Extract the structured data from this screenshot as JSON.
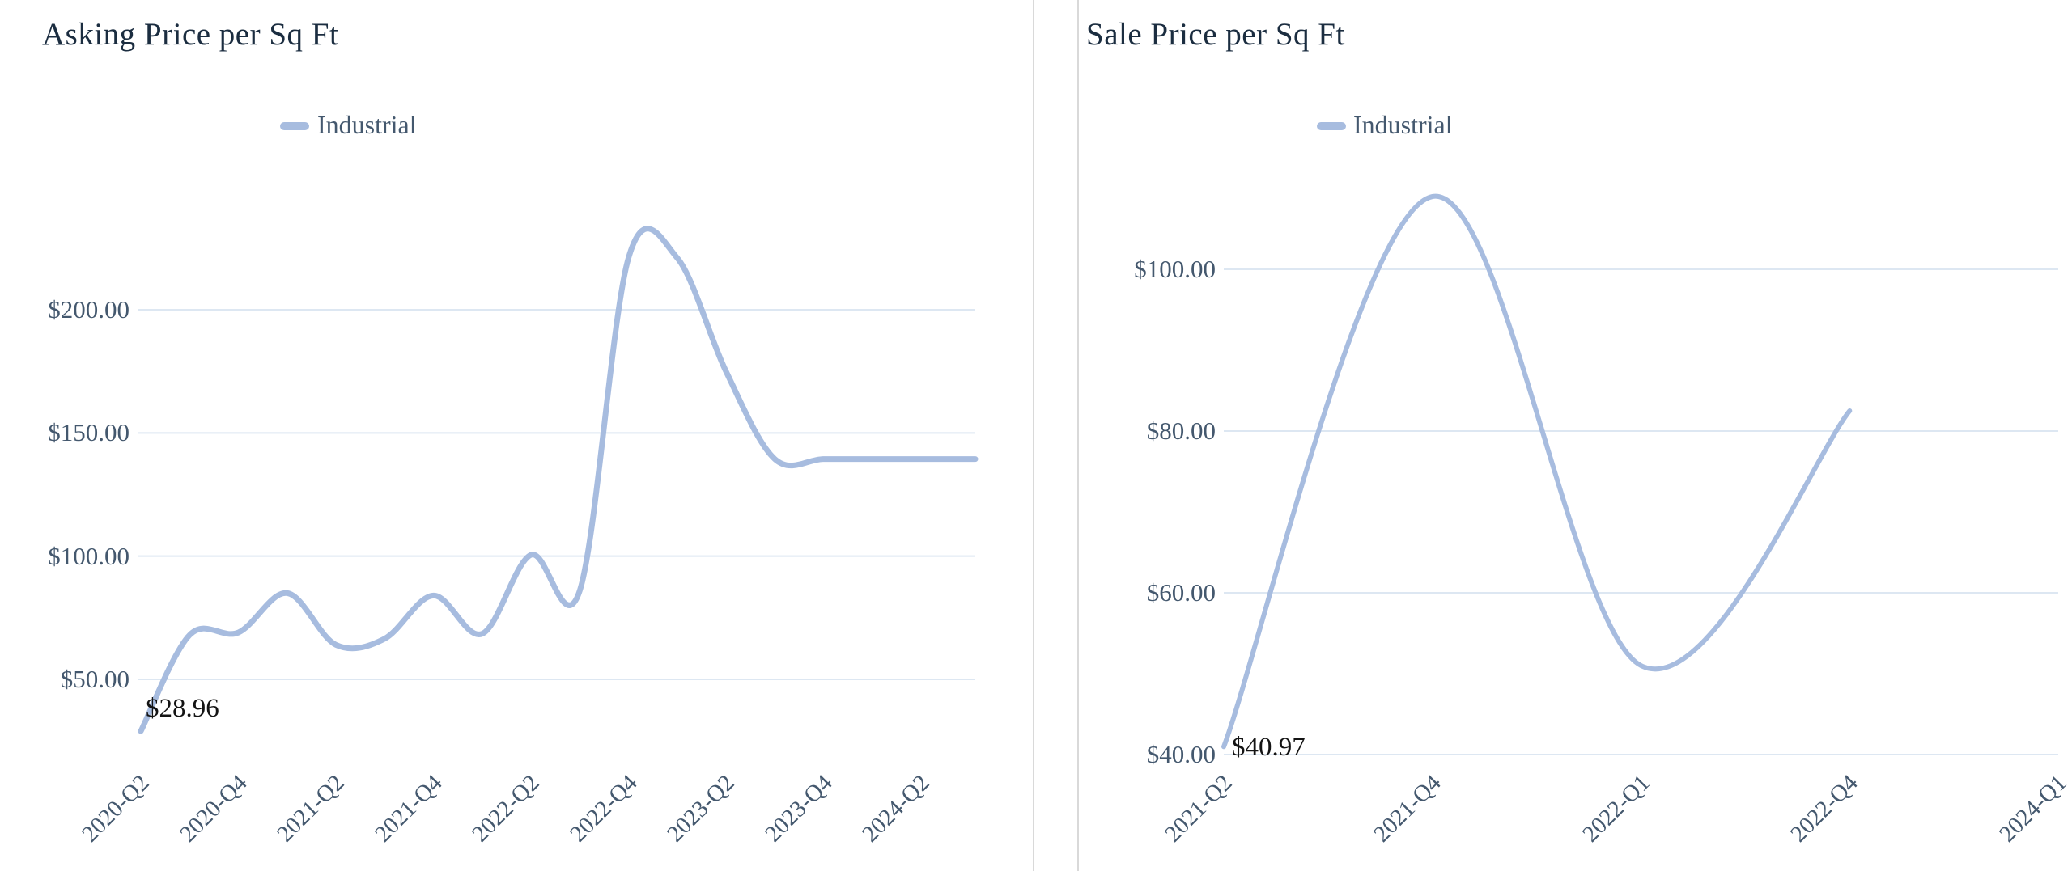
{
  "page": {
    "background": "#ffffff",
    "divider_color": "#d9d9d9",
    "accent_line_color": "#a7bcdf",
    "gridline_color": "#dde7f2",
    "title_color": "#1b2d40",
    "axis_text_color": "#44586e",
    "annotation_text_color": "#141414"
  },
  "chart_data": [
    {
      "type": "line",
      "title": "Asking Price per Sq Ft",
      "legend": {
        "label": "Industrial",
        "color": "#a7bcdf"
      },
      "grid": true,
      "legend_position": "top",
      "y_ticks": [
        {
          "label": "$200.00",
          "value": 200
        },
        {
          "label": "$150.00",
          "value": 150
        },
        {
          "label": "$100.00",
          "value": 100
        },
        {
          "label": "$50.00",
          "value": 50
        }
      ],
      "ylim": [
        28,
        235
      ],
      "x_tick_labels": [
        "2020-Q2",
        "2020-Q4",
        "2021-Q2",
        "2021-Q4",
        "2022-Q2",
        "2022-Q4",
        "2023-Q2",
        "2023-Q4",
        "2024-Q2"
      ],
      "series": [
        {
          "name": "Industrial",
          "x": [
            "2020-Q2",
            "2020-Q3",
            "2020-Q4",
            "2021-Q1",
            "2021-Q2",
            "2021-Q3",
            "2021-Q4",
            "2022-Q1",
            "2022-Q2",
            "2022-Q3",
            "2022-Q4",
            "2023-Q1",
            "2023-Q2",
            "2023-Q3",
            "2023-Q4",
            "2024-Q1",
            "2024-Q2"
          ],
          "values": [
            28.96,
            68,
            69,
            85,
            64,
            66.5,
            84,
            68.5,
            100.5,
            86,
            221,
            221,
            175,
            139.4,
            139.4,
            139.4,
            139.4
          ]
        }
      ],
      "annotation": {
        "text": "$28.96",
        "at_x": "2020-Q2",
        "value": 28.96
      }
    },
    {
      "type": "line",
      "title": "Sale Price per Sq Ft",
      "legend": {
        "label": "Industrial",
        "color": "#a7bcdf"
      },
      "grid": true,
      "legend_position": "top",
      "y_ticks": [
        {
          "label": "$100.00",
          "value": 100
        },
        {
          "label": "$80.00",
          "value": 80
        },
        {
          "label": "$60.00",
          "value": 60
        },
        {
          "label": "$40.00",
          "value": 40
        }
      ],
      "ylim": [
        40,
        112
      ],
      "x_tick_labels": [
        "2021-Q2",
        "2021-Q4",
        "2022-Q1",
        "2022-Q4",
        "2024-Q1"
      ],
      "series": [
        {
          "name": "Industrial",
          "x": [
            "2021-Q2",
            "2021-Q4",
            "2022-Q1",
            "2022-Q4"
          ],
          "values": [
            40.97,
            109,
            51,
            82.5
          ]
        }
      ],
      "annotation": {
        "text": "$40.97",
        "at_x": "2021-Q2",
        "value": 40.97
      }
    }
  ]
}
